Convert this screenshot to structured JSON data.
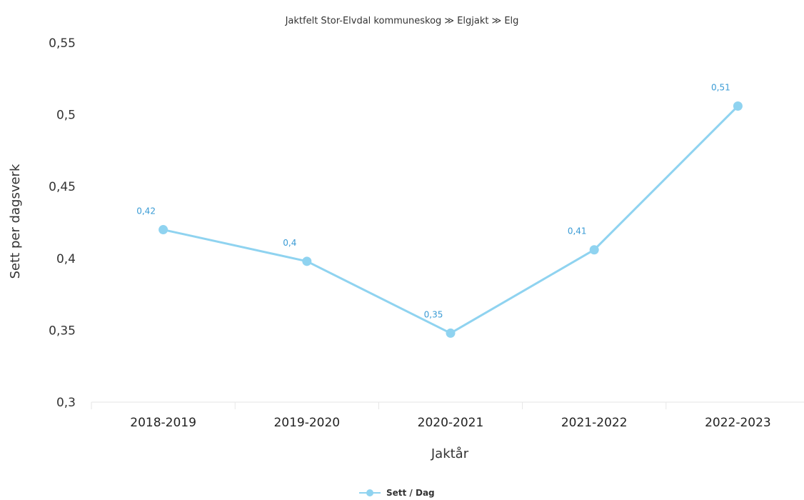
{
  "chart_data": {
    "type": "line",
    "title": "",
    "subtitle": "Jaktfelt Stor-Elvdal kommuneskog ≫ Elgjakt ≫ Elg",
    "xlabel": "Jaktår",
    "ylabel": "Sett per dagsverk",
    "categories": [
      "2018-2019",
      "2019-2020",
      "2020-2021",
      "2021-2022",
      "2022-2023"
    ],
    "series": [
      {
        "name": "Sett / Dag",
        "values": [
          0.42,
          0.398,
          0.348,
          0.406,
          0.506
        ],
        "data_labels": [
          "0,42",
          "0,4",
          "0,35",
          "0,41",
          "0,51"
        ],
        "color": "#8fd3f0"
      }
    ],
    "ylim": [
      0.3,
      0.55
    ],
    "y_ticks": [
      0.3,
      0.35,
      0.4,
      0.45,
      0.5,
      0.55
    ],
    "y_tick_labels": [
      "0,3",
      "0,35",
      "0,4",
      "0,45",
      "0,5",
      "0,55"
    ],
    "grid": false,
    "legend_position": "bottom-center"
  }
}
